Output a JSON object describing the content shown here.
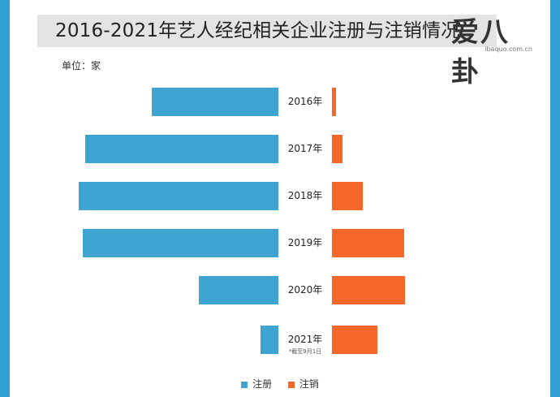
{
  "header": {
    "title": "2016-2021年艺人经纪相关企业注册与注销情况",
    "unit": "单位：家"
  },
  "logo": {
    "text": "爱八卦",
    "sub": "ibaquo.com.cn"
  },
  "colors": {
    "registered": "#3fa4d2",
    "cancelled": "#f4692a",
    "frame": "#2f9fd6"
  },
  "chart_data": {
    "type": "bar",
    "orientation": "horizontal-diverging",
    "categories": [
      "2016年",
      "2017年",
      "2018年",
      "2019年",
      "2020年",
      "2021年"
    ],
    "category_notes": [
      "",
      "",
      "",
      "",
      "",
      "*截至9月1日"
    ],
    "series": [
      {
        "name": "注册",
        "values": [
          156,
          238,
          246,
          241,
          98,
          22
        ]
      },
      {
        "name": "注销",
        "values": [
          5,
          13,
          38,
          89,
          90,
          56
        ]
      }
    ],
    "legend": "bottom-center",
    "grid": false
  }
}
